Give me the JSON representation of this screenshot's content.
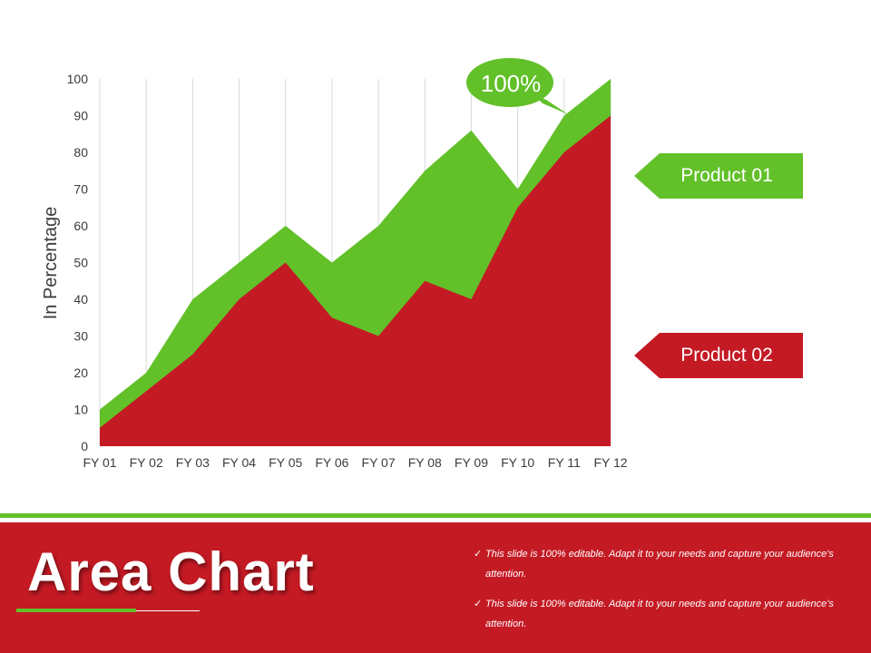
{
  "colors": {
    "product01": "#62c029",
    "product02": "#c41a24",
    "footer_bg": "#c41a24",
    "accent_line": "#62c029"
  },
  "chart_data": {
    "type": "area",
    "stacked": false,
    "categories": [
      "FY 01",
      "FY 02",
      "FY 03",
      "FY 04",
      "FY 05",
      "FY 06",
      "FY 07",
      "FY 08",
      "FY 09",
      "FY 10",
      "FY 11",
      "FY 12"
    ],
    "series": [
      {
        "name": "Product 01",
        "values": [
          10,
          20,
          40,
          50,
          60,
          50,
          60,
          75,
          86,
          70,
          90,
          100
        ]
      },
      {
        "name": "Product 02",
        "values": [
          5,
          15,
          25,
          40,
          50,
          35,
          30,
          45,
          40,
          65,
          80,
          90
        ]
      }
    ],
    "ylabel": "In Percentage",
    "ylim": [
      0,
      100
    ],
    "yticks": [
      0,
      10,
      20,
      30,
      40,
      50,
      60,
      70,
      80,
      90,
      100
    ],
    "grid": "vertical",
    "callout": "100%",
    "legend": [
      {
        "label": "Product 01",
        "series": 0
      },
      {
        "label": "Product 02",
        "series": 1
      }
    ]
  },
  "footer": {
    "title": "Area Chart",
    "bullets": [
      "This slide is 100% editable. Adapt it to your needs and capture your audience's attention.",
      "This slide is 100% editable. Adapt it to your needs and capture your audience's attention."
    ],
    "check_glyph": "✓"
  }
}
